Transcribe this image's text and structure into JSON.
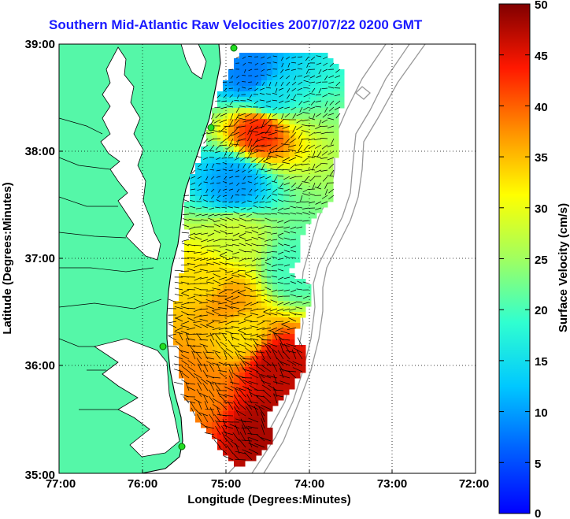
{
  "title": "Southern Mid-Atlantic Raw Velocities 2007/07/22 0200 GMT",
  "x_axis": {
    "label": "Longitude (Degrees:Minutes)",
    "ticks": [
      "77:00",
      "76:00",
      "75:00",
      "74:00",
      "73:00",
      "72:00"
    ]
  },
  "y_axis": {
    "label": "Latitude (Degrees:Minutes)",
    "ticks": [
      "39:00",
      "38:00",
      "37:00",
      "36:00",
      "35:00"
    ]
  },
  "colorbar": {
    "label": "Surface Velocity (cm/s)",
    "ticks": [
      "50",
      "45",
      "40",
      "35",
      "30",
      "25",
      "20",
      "15",
      "10",
      "5",
      "0"
    ],
    "range": [
      0,
      50
    ],
    "colormap": "jet"
  },
  "colors": {
    "land": "#55f7a8",
    "title": "#1a1aff",
    "coast": "#000000",
    "isobath": "#999999",
    "grid": "#000000",
    "station": "#22dd22"
  },
  "map": {
    "lon_range": [
      -77,
      -72
    ],
    "lat_range": [
      35,
      39
    ],
    "grid": true
  },
  "velocity_field": [
    {
      "lon": -74.7,
      "lat": 38.7,
      "speed": 8
    },
    {
      "lon": -74.5,
      "lat": 38.5,
      "speed": 15
    },
    {
      "lon": -74.6,
      "lat": 38.2,
      "speed": 43
    },
    {
      "lon": -74.9,
      "lat": 37.7,
      "speed": 10
    },
    {
      "lon": -74.9,
      "lat": 37.2,
      "speed": 28
    },
    {
      "lon": -75.2,
      "lat": 36.8,
      "speed": 33
    },
    {
      "lon": -75.0,
      "lat": 36.6,
      "speed": 37
    },
    {
      "lon": -74.8,
      "lat": 36.3,
      "speed": 33
    },
    {
      "lon": -74.4,
      "lat": 36.0,
      "speed": 47
    },
    {
      "lon": -74.5,
      "lat": 35.4,
      "speed": 48
    },
    {
      "lon": -74.2,
      "lat": 36.9,
      "speed": 20
    },
    {
      "lon": -75.4,
      "lat": 35.8,
      "speed": 38
    }
  ]
}
